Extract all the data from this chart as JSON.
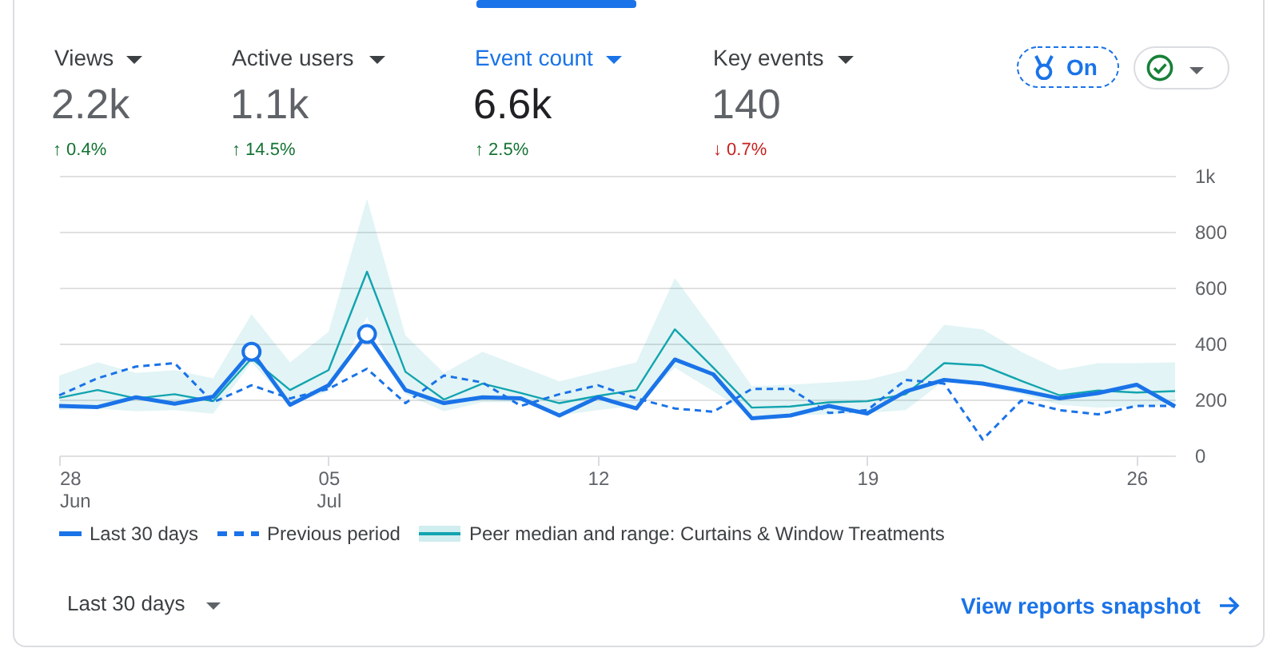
{
  "chart_data": {
    "type": "line",
    "x": [
      "--06-28",
      "--06-29",
      "--06-30",
      "--07-01",
      "--07-02",
      "--07-03",
      "--07-04",
      "--07-05",
      "--07-06",
      "--07-07",
      "--07-08",
      "--07-09",
      "--07-10",
      "--07-11",
      "--07-12",
      "--07-13",
      "--07-14",
      "--07-15",
      "--07-16",
      "--07-17",
      "--07-18",
      "--07-19",
      "--07-20",
      "--07-21",
      "--07-22",
      "--07-23",
      "--07-24",
      "--07-25",
      "--07-26",
      "--07-27"
    ],
    "series": [
      {
        "name": "Peer median and range: Curtains & Window Treatments",
        "color": "#12a4af",
        "values": [
          206,
          234,
          204,
          219,
          194,
          347,
          234,
          305,
          657,
          299,
          200,
          257,
          223,
          187,
          213,
          234,
          451,
          314,
          171,
          175,
          190,
          194,
          219,
          330,
          322,
          267,
          215,
          232,
          225,
          230
        ],
        "lower": [
          162,
          168,
          158,
          162,
          149,
          333,
          181,
          229,
          495,
          219,
          158,
          190,
          190,
          143,
          162,
          177,
          314,
          229,
          143,
          143,
          147,
          152,
          162,
          267,
          248,
          219,
          181,
          171,
          175,
          181
        ],
        "upper": [
          286,
          333,
          295,
          305,
          276,
          505,
          333,
          442,
          918,
          429,
          295,
          371,
          318,
          265,
          299,
          333,
          634,
          448,
          248,
          253,
          261,
          270,
          305,
          467,
          451,
          371,
          305,
          330,
          330,
          333
        ]
      },
      {
        "name": "Previous period",
        "color": "#1a73e8",
        "line_style": "dashed",
        "values": [
          215,
          276,
          318,
          330,
          190,
          251,
          204,
          238,
          310,
          187,
          286,
          261,
          177,
          219,
          251,
          204,
          168,
          156,
          238,
          238,
          152,
          162,
          270,
          257,
          57,
          196,
          162,
          147,
          177,
          177
        ]
      },
      {
        "name": "Last 30 days",
        "color": "#1a73e8",
        "values": [
          177,
          173,
          208,
          185,
          210,
          371,
          181,
          251,
          434,
          234,
          187,
          208,
          204,
          143,
          208,
          168,
          343,
          290,
          133,
          143,
          177,
          150,
          229,
          270,
          257,
          232,
          204,
          223,
          253,
          175
        ]
      },
      {
        "type": "scatter",
        "color": "#1a73e8",
        "marker": "circle",
        "x": [
          "--07-03",
          "--07-06"
        ],
        "values": [
          371,
          434
        ]
      }
    ],
    "xlim": [
      "--06-28",
      "--07-27"
    ],
    "xticks": [
      {
        "value": "--06-28",
        "label": "28 Jun"
      },
      {
        "value": "--07-05",
        "label": "05 Jul"
      },
      {
        "value": "--07-12",
        "label": "12"
      },
      {
        "value": "--07-19",
        "label": "19"
      },
      {
        "value": "--07-26",
        "label": "26"
      }
    ],
    "ylim": [
      0,
      1000
    ],
    "yticks": [
      0,
      200,
      400,
      600,
      800,
      {
        "value": 1000,
        "label": "1k"
      }
    ],
    "grid": "y",
    "legend": "bottom",
    "annotations": [
      "Views",
      "2.2k",
      "↑ 0.4%",
      "Active users",
      "1.1k",
      "↑ 14.5%",
      "Event count",
      "6.6k",
      "↑ 2.5%",
      "Key events",
      "140",
      "↓ 0.7%",
      "On",
      "Last 30 days",
      "View reports snapshot"
    ]
  }
}
